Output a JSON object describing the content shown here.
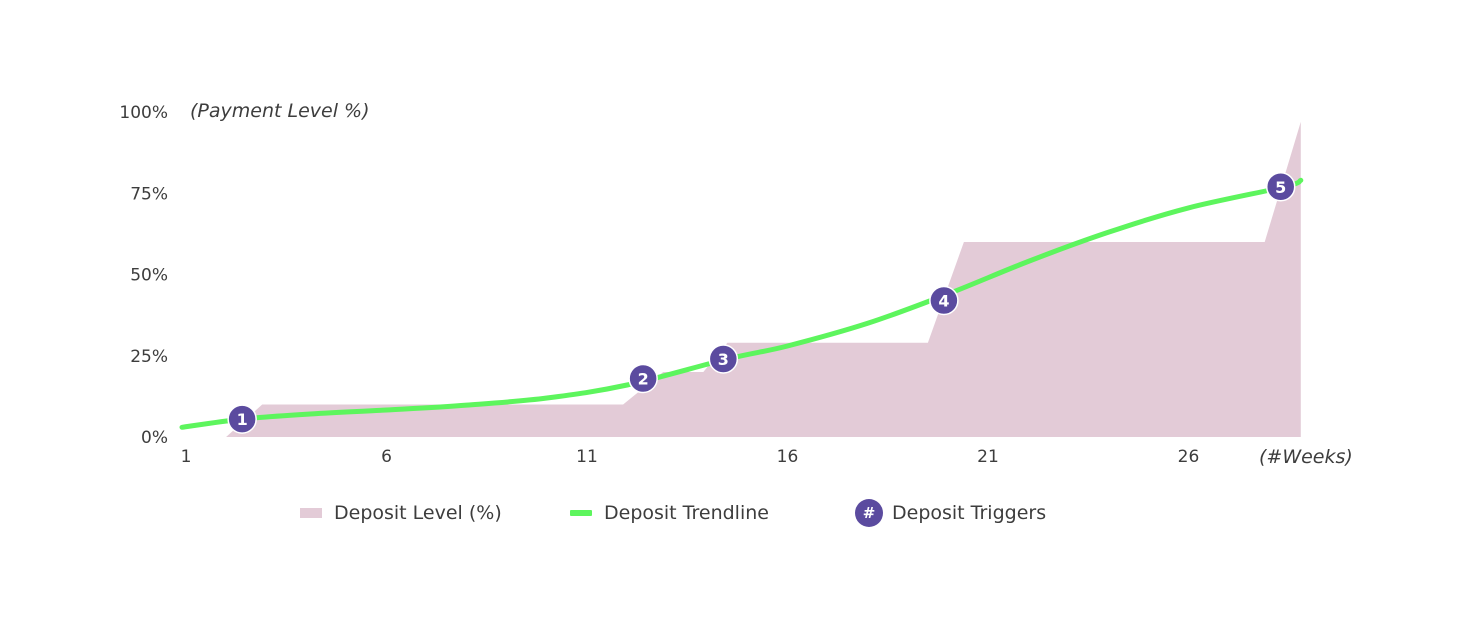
{
  "chart_data": {
    "type": "area",
    "ylabel": "(Payment Level %)",
    "xlabel": "(#Weeks)",
    "ylim": [
      0,
      100
    ],
    "xlim": [
      1,
      28.8
    ],
    "y_ticks": [
      0,
      25,
      50,
      75,
      100
    ],
    "y_tick_labels": [
      "0%",
      "25%",
      "50%",
      "75%",
      "100%"
    ],
    "x_ticks": [
      1,
      6,
      11,
      16,
      21,
      26
    ],
    "x_tick_labels": [
      "1",
      "6",
      "11",
      "16",
      "21",
      "26"
    ],
    "series": [
      {
        "name": "Deposit Level (%)",
        "type": "area",
        "color": "#e3cbd7",
        "points": [
          [
            2,
            0
          ],
          [
            2.9,
            10
          ],
          [
            11.9,
            10
          ],
          [
            12.9,
            20
          ],
          [
            13.9,
            20
          ],
          [
            14.5,
            29
          ],
          [
            19.5,
            29
          ],
          [
            20.4,
            60
          ],
          [
            27.9,
            60
          ],
          [
            28.8,
            97
          ],
          [
            28.8,
            0
          ]
        ]
      },
      {
        "name": "Deposit Trendline",
        "type": "line",
        "color": "#5df55d",
        "points": [
          [
            0.9,
            3
          ],
          [
            2.4,
            5.5
          ],
          [
            4,
            7
          ],
          [
            6,
            8.3
          ],
          [
            8,
            9.8
          ],
          [
            10,
            12
          ],
          [
            12,
            16
          ],
          [
            14.5,
            24
          ],
          [
            16,
            28
          ],
          [
            18,
            35
          ],
          [
            20,
            44
          ],
          [
            22,
            54
          ],
          [
            24,
            63
          ],
          [
            26,
            70.5
          ],
          [
            28.4,
            77
          ],
          [
            28.8,
            79
          ]
        ]
      }
    ],
    "triggers": {
      "name": "Deposit Triggers",
      "color": "#5b4b9f",
      "points": [
        {
          "label": "1",
          "x": 2.4,
          "y": 5.5
        },
        {
          "label": "2",
          "x": 12.4,
          "y": 18
        },
        {
          "label": "3",
          "x": 14.4,
          "y": 24
        },
        {
          "label": "4",
          "x": 19.9,
          "y": 42
        },
        {
          "label": "5",
          "x": 28.3,
          "y": 77
        }
      ]
    },
    "grid": false,
    "legend_position": "bottom"
  },
  "legend": {
    "area_label": "Deposit Level (%)",
    "line_label": "Deposit Trendline",
    "marker_label": "Deposit Triggers",
    "marker_symbol": "#"
  }
}
